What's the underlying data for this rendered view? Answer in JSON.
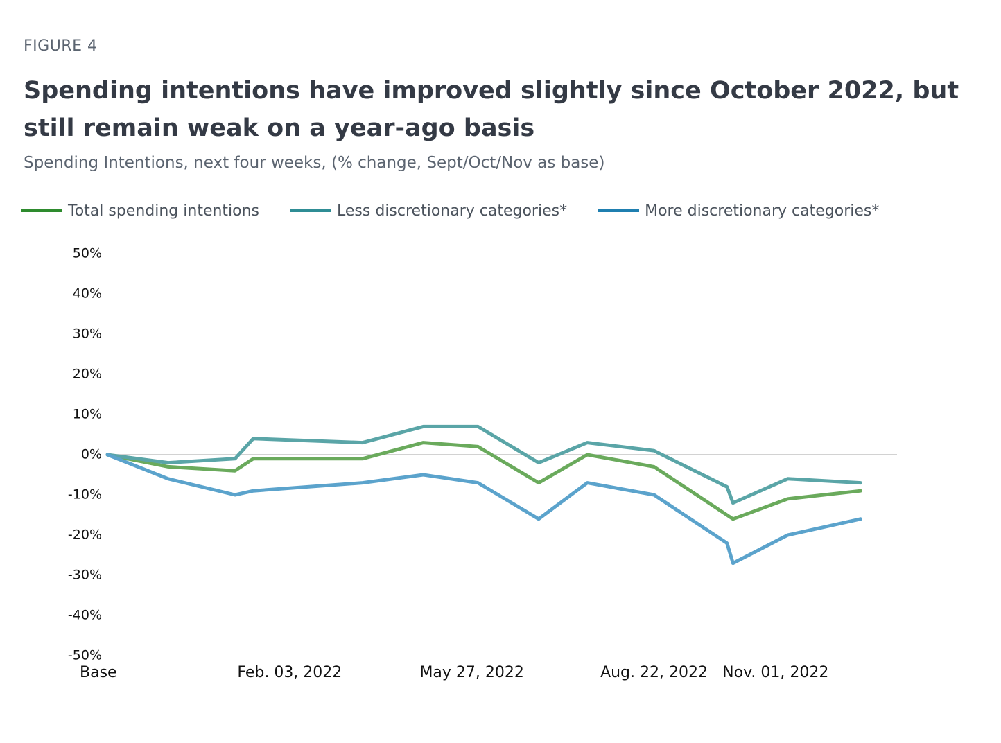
{
  "figure_label": "FIGURE 4",
  "title": "Spending intentions have improved slightly since October 2022, but still remain weak on a year-ago basis",
  "subtitle": "Spending Intentions, next four weeks, (% change, Sept/Oct/Nov as base)",
  "legend": [
    {
      "label": "Total spending intentions",
      "color": "#2e8b2e"
    },
    {
      "label": "Less discretionary categories*",
      "color": "#2f8d95"
    },
    {
      "label": "More discretionary categories*",
      "color": "#1f7fb0"
    }
  ],
  "chart_data": {
    "type": "line",
    "title": "Spending intentions have improved slightly since October 2022, but still remain weak on a year-ago basis",
    "subtitle": "Spending Intentions, next four weeks, (% change, Sept/Oct/Nov as base)",
    "xlabel": "",
    "ylabel": "",
    "x": [
      0,
      1,
      2,
      3,
      4,
      5,
      6,
      7,
      8,
      9,
      10,
      11,
      12,
      13
    ],
    "x_tick_labels": [
      {
        "x": 0,
        "label": "Base"
      },
      {
        "x": 3,
        "label": "Feb. 03, 2022"
      },
      {
        "x": 6,
        "label": "May 27, 2022"
      },
      {
        "x": 9,
        "label": "Aug. 22, 2022"
      },
      {
        "x": 11,
        "label": "Nov. 01, 2022"
      }
    ],
    "ylim": [
      -50,
      50
    ],
    "y_ticks": [
      50,
      40,
      30,
      20,
      10,
      0,
      -10,
      -20,
      -30,
      -40,
      -50
    ],
    "y_tick_labels": [
      "50%",
      "40%",
      "30%",
      "20%",
      "10%",
      "0%",
      "-10%",
      "-20%",
      "-30%",
      "-40%",
      "-50%"
    ],
    "zero_line": true,
    "grid": false,
    "series": [
      {
        "name": "Total spending intentions",
        "color": "#6aaa5c",
        "points": [
          [
            0,
            0
          ],
          [
            1,
            -3
          ],
          [
            2.1,
            -4
          ],
          [
            2.4,
            -1
          ],
          [
            4.2,
            -1
          ],
          [
            5.2,
            3
          ],
          [
            6.1,
            2
          ],
          [
            7.1,
            -7
          ],
          [
            7.9,
            0
          ],
          [
            9.0,
            -3
          ],
          [
            10.3,
            -16
          ],
          [
            11.2,
            -11
          ],
          [
            12.4,
            -9
          ]
        ]
      },
      {
        "name": "Less discretionary categories*",
        "color": "#5aa5a7",
        "points": [
          [
            0,
            0
          ],
          [
            1,
            -2
          ],
          [
            2.1,
            -1
          ],
          [
            2.4,
            4
          ],
          [
            4.2,
            3
          ],
          [
            5.2,
            7
          ],
          [
            6.1,
            7
          ],
          [
            7.1,
            -2
          ],
          [
            7.9,
            3
          ],
          [
            9.0,
            1
          ],
          [
            10.2,
            -8
          ],
          [
            10.3,
            -12
          ],
          [
            11.2,
            -6
          ],
          [
            12.4,
            -7
          ]
        ]
      },
      {
        "name": "More discretionary categories*",
        "color": "#5ba3cc",
        "points": [
          [
            0,
            0
          ],
          [
            1,
            -6
          ],
          [
            2.1,
            -10
          ],
          [
            2.4,
            -9
          ],
          [
            4.2,
            -7
          ],
          [
            5.2,
            -5
          ],
          [
            6.1,
            -7
          ],
          [
            7.1,
            -16
          ],
          [
            7.9,
            -7
          ],
          [
            9.0,
            -10
          ],
          [
            10.2,
            -22
          ],
          [
            10.3,
            -27
          ],
          [
            11.2,
            -20
          ],
          [
            12.4,
            -16
          ]
        ]
      }
    ]
  }
}
